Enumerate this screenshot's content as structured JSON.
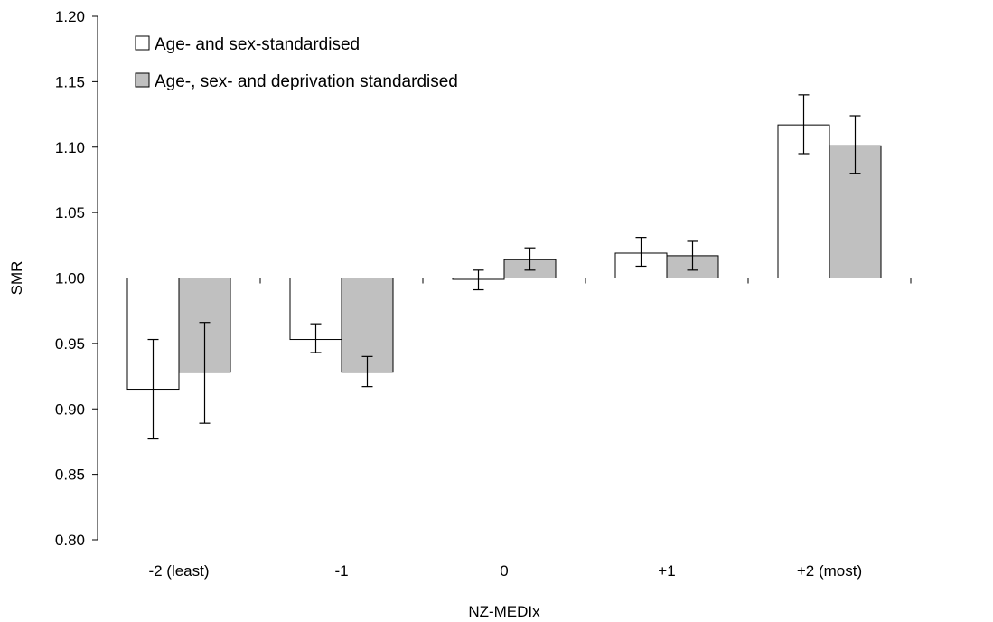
{
  "chart_data": {
    "type": "bar",
    "title": "",
    "xlabel": "NZ-MEDIx",
    "ylabel": "SMR",
    "categories": [
      "-2 (least)",
      "-1",
      "0",
      "+1",
      "+2 (most)"
    ],
    "ylim": [
      0.8,
      1.2
    ],
    "yticks": [
      "0.80",
      "0.85",
      "0.90",
      "0.95",
      "1.00",
      "1.05",
      "1.10",
      "1.15",
      "1.20"
    ],
    "baseline": 1.0,
    "grid": false,
    "legend_position": "top-left",
    "series": [
      {
        "name": "Age- and sex-standardised",
        "color": "#ffffff",
        "values": [
          0.915,
          0.953,
          0.999,
          1.019,
          1.117
        ],
        "error_low": [
          0.877,
          0.943,
          0.991,
          1.009,
          1.095
        ],
        "error_high": [
          0.953,
          0.965,
          1.006,
          1.031,
          1.14
        ]
      },
      {
        "name": "Age-, sex- and deprivation standardised",
        "color": "#c0c0c0",
        "values": [
          0.928,
          0.928,
          1.014,
          1.017,
          1.101
        ],
        "error_low": [
          0.889,
          0.917,
          1.006,
          1.006,
          1.08
        ],
        "error_high": [
          0.966,
          0.94,
          1.023,
          1.028,
          1.124
        ]
      }
    ]
  }
}
